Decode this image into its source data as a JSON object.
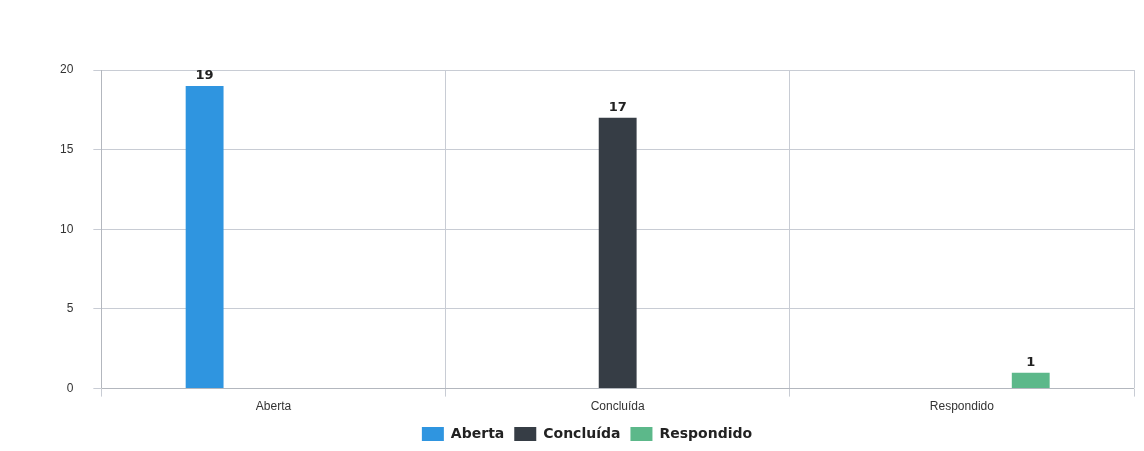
{
  "chart_data": {
    "type": "bar",
    "categories": [
      "Aberta",
      "Concluída",
      "Respondido"
    ],
    "series": [
      {
        "name": "Aberta",
        "color": "#2f95e0",
        "values": [
          19,
          null,
          null
        ]
      },
      {
        "name": "Concluída",
        "color": "#363d45",
        "values": [
          null,
          17,
          null
        ]
      },
      {
        "name": "Respondido",
        "color": "#5cb88a",
        "values": [
          null,
          null,
          1
        ]
      }
    ],
    "ylim": [
      0,
      20
    ],
    "yticks": [
      0,
      5,
      10,
      15,
      20
    ],
    "grid": true,
    "legend": "bottom",
    "data_labels": true
  }
}
